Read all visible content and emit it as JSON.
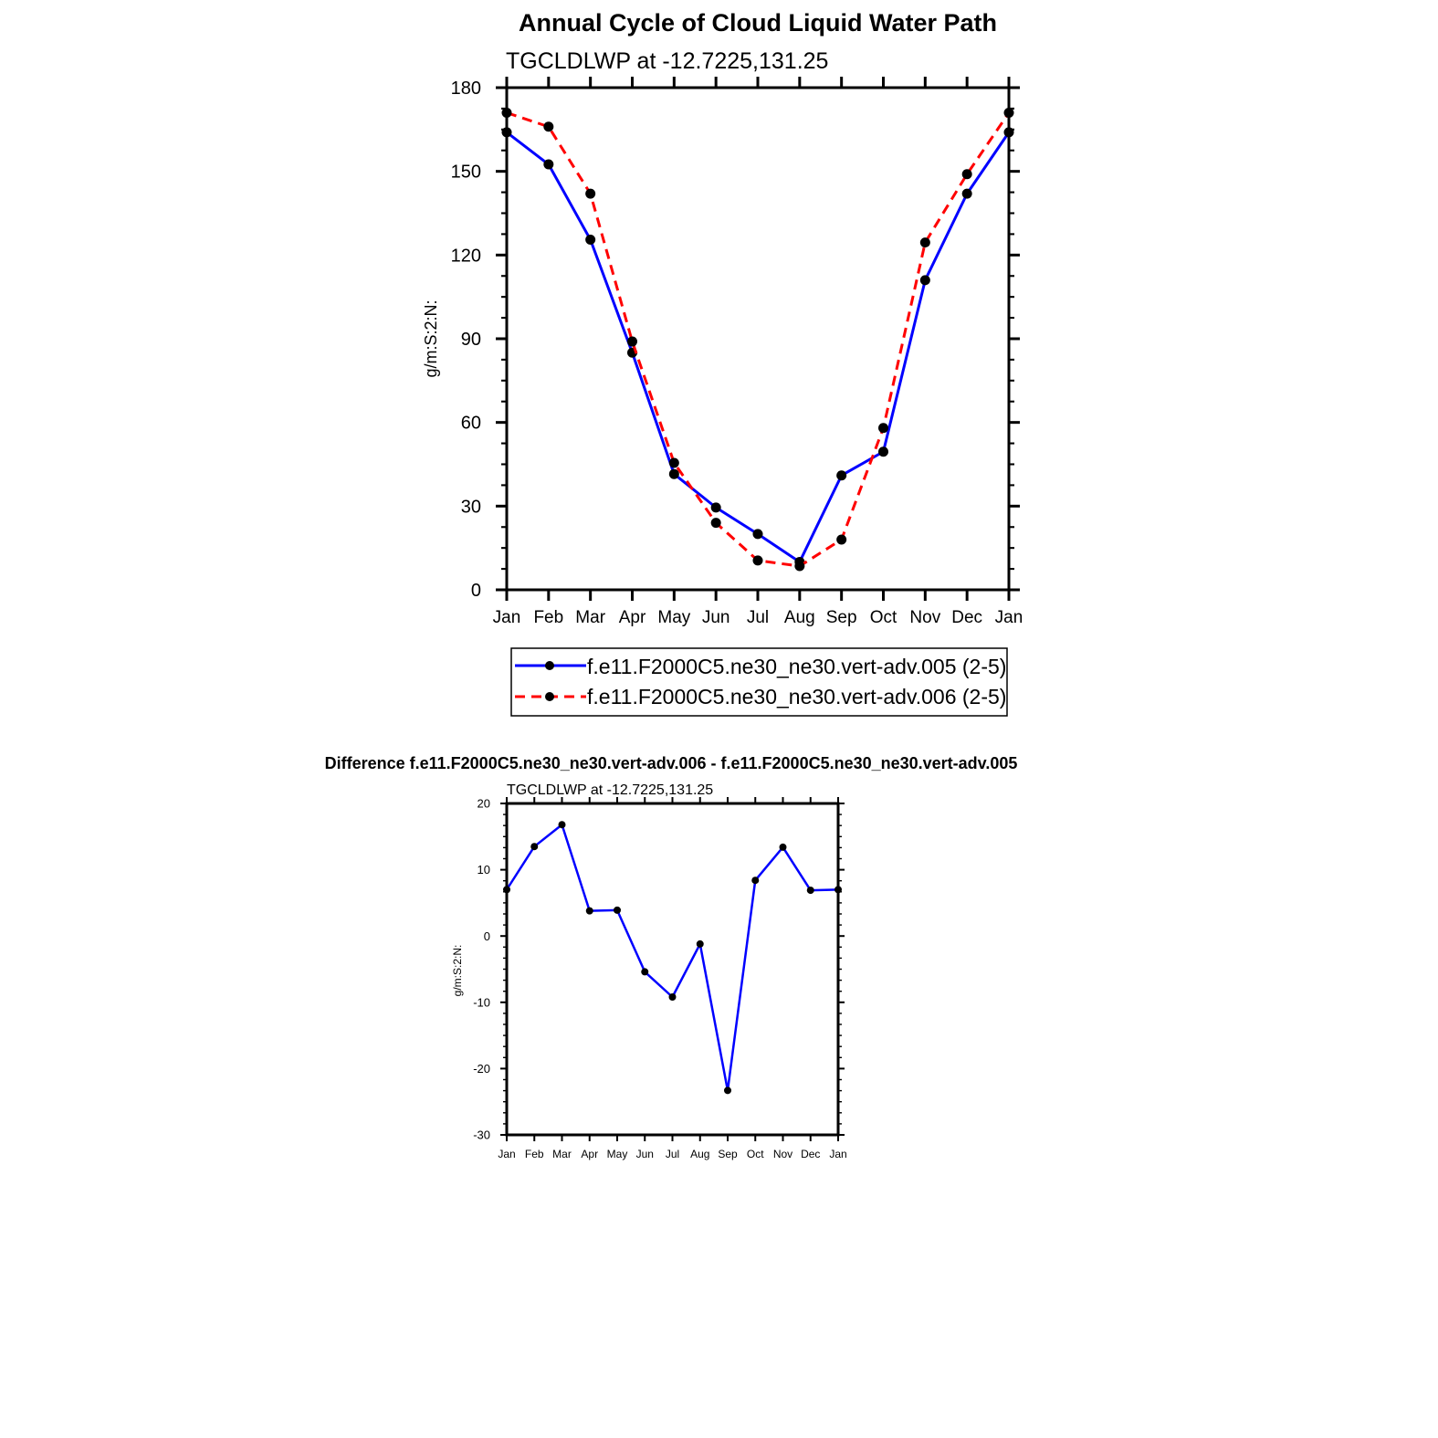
{
  "chart_data": [
    {
      "type": "line",
      "title": "Annual Cycle of Cloud Liquid Water Path",
      "subtitle": "TGCLDLWP at -12.7225,131.25",
      "ylabel": "g/m:S:2:N:",
      "xlabel": "",
      "ylim": [
        0,
        180
      ],
      "yticks": [
        0,
        30,
        60,
        90,
        120,
        150,
        180
      ],
      "categories": [
        "Jan",
        "Feb",
        "Mar",
        "Apr",
        "May",
        "Jun",
        "Jul",
        "Aug",
        "Sep",
        "Oct",
        "Nov",
        "Dec",
        "Jan"
      ],
      "series": [
        {
          "name": "f.e11.F2000C5.ne30_ne30.vert-adv.005 (2-5)",
          "color": "#0000ff",
          "dash": "solid",
          "values": [
            164,
            152.5,
            125.5,
            85,
            41.5,
            29.5,
            20,
            10,
            41,
            49.5,
            111,
            142,
            164
          ]
        },
        {
          "name": "f.e11.F2000C5.ne30_ne30.vert-adv.006 (2-5)",
          "color": "#ff0000",
          "dash": "dashed",
          "values": [
            171,
            166,
            142,
            89,
            45.5,
            24,
            10.5,
            8.5,
            18,
            58,
            124.5,
            149,
            171
          ]
        }
      ]
    },
    {
      "type": "line",
      "title": "Difference f.e11.F2000C5.ne30_ne30.vert-adv.006 - f.e11.F2000C5.ne30_ne30.vert-adv.005",
      "subtitle": "TGCLDLWP at -12.7225,131.25",
      "ylabel": "g/m:S:2:N:",
      "xlabel": "",
      "ylim": [
        -30,
        20
      ],
      "yticks": [
        -30,
        -20,
        -10,
        0,
        10,
        20
      ],
      "categories": [
        "Jan",
        "Feb",
        "Mar",
        "Apr",
        "May",
        "Jun",
        "Jul",
        "Aug",
        "Sep",
        "Oct",
        "Nov",
        "Dec",
        "Jan"
      ],
      "series": [
        {
          "name": "difference",
          "color": "#0000ff",
          "dash": "solid",
          "values": [
            7,
            13.5,
            16.8,
            3.8,
            3.9,
            -5.4,
            -9.2,
            -1.2,
            -23.3,
            8.4,
            13.4,
            6.9,
            7
          ]
        }
      ]
    }
  ]
}
